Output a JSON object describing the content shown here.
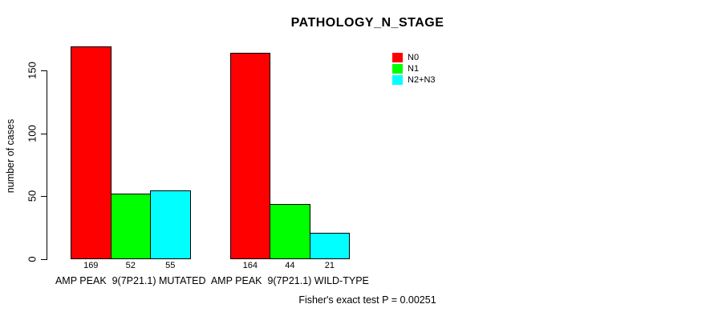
{
  "chart_data": {
    "type": "bar",
    "title": "PATHOLOGY_N_STAGE",
    "ylabel": "number of cases",
    "ylim": [
      0,
      150
    ],
    "yticks": [
      0,
      50,
      100,
      150
    ],
    "grid": false,
    "legend_position": "top-right",
    "categories": [
      "AMP PEAK  9(7P21.1) MUTATED",
      "AMP PEAK  9(7P21.1) WILD-TYPE"
    ],
    "series": [
      {
        "name": "N0",
        "color": "#FF0000",
        "values": [
          169,
          164
        ]
      },
      {
        "name": "N1",
        "color": "#00FF00",
        "values": [
          52,
          44
        ]
      },
      {
        "name": "N2+N3",
        "color": "#00FFFF",
        "values": [
          55,
          21
        ]
      }
    ],
    "bar_value_labels": [
      [
        169,
        52,
        55
      ],
      [
        164,
        44,
        21
      ]
    ],
    "footnote": "Fisher's exact test P = 0.00251"
  },
  "colors": {
    "bar_border": "#000000",
    "axis": "#000000",
    "text": "#000000",
    "background": "#FFFFFF"
  }
}
